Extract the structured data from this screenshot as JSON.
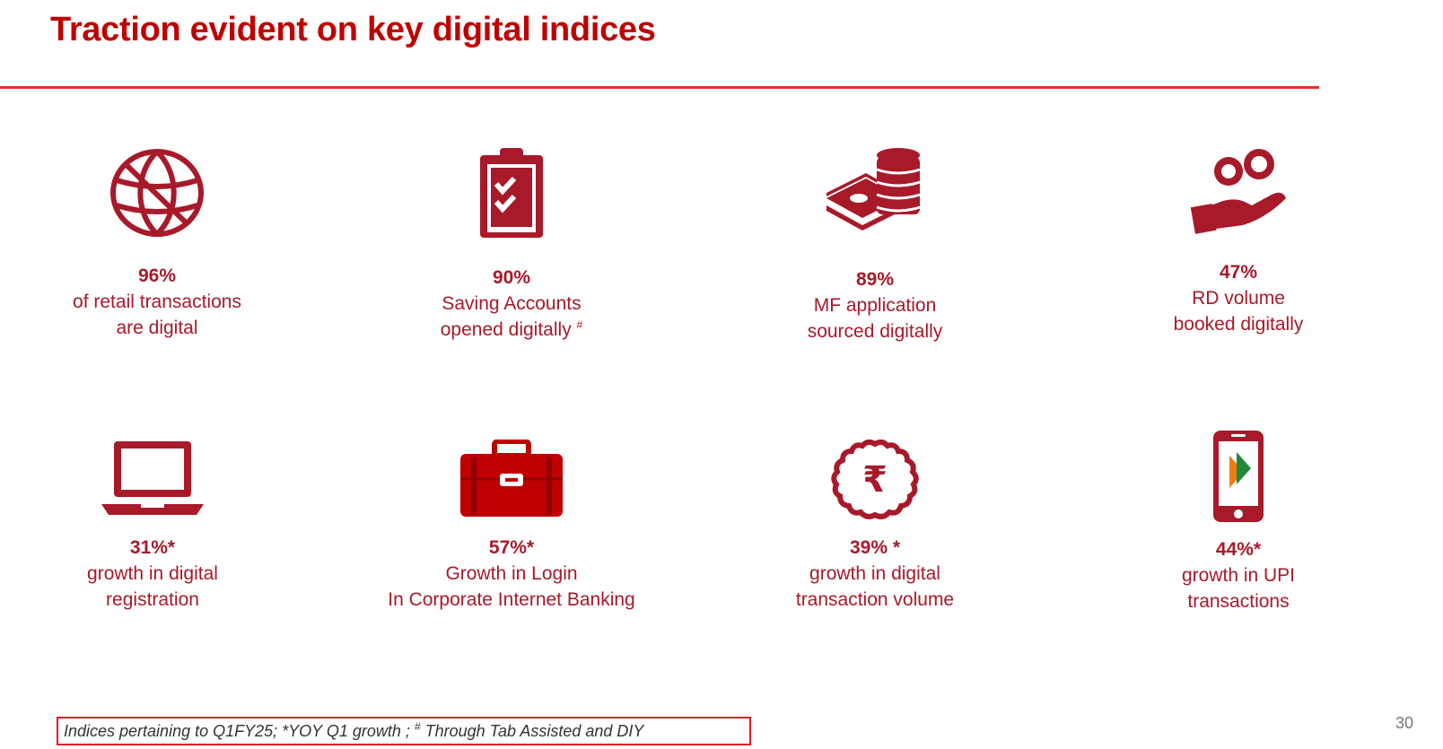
{
  "title": "Traction evident on key digital indices",
  "accent_color": "#a8192a",
  "rule_color": "#e8312d",
  "metrics": [
    {
      "icon": "globe-icon",
      "value": "96%",
      "line1": "of retail transactions",
      "line2": "are digital",
      "mark": ""
    },
    {
      "icon": "clipboard-check-icon",
      "value": "90%",
      "line1": "Saving Accounts",
      "line2": "opened digitally",
      "mark": "#"
    },
    {
      "icon": "money-coins-icon",
      "value": "89%",
      "line1": "MF application",
      "line2": "sourced digitally",
      "mark": ""
    },
    {
      "icon": "hand-coins-icon",
      "value": "47%",
      "line1": "RD volume",
      "line2": "booked digitally",
      "mark": ""
    },
    {
      "icon": "laptop-icon",
      "value": "31%*",
      "line1": "growth in digital",
      "line2": "registration",
      "mark": ""
    },
    {
      "icon": "briefcase-icon",
      "value": "57%*",
      "line1": "Growth in Login",
      "line2": "In Corporate Internet Banking",
      "mark": ""
    },
    {
      "icon": "rupee-badge-icon",
      "value": "39% *",
      "line1": "growth in digital",
      "line2": "transaction volume",
      "mark": ""
    },
    {
      "icon": "mobile-upi-icon",
      "value": "44%*",
      "line1": "growth in UPI",
      "line2": "transactions",
      "mark": ""
    }
  ],
  "footnote": {
    "part1": "Indices pertaining to Q1FY25; *YOY Q1 growth ; ",
    "mark": "#",
    "part2": " Through Tab Assisted and DIY"
  },
  "page_number": "30"
}
